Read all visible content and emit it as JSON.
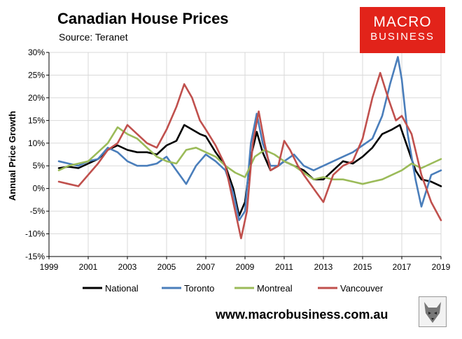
{
  "header": {
    "title": "Canadian House Prices",
    "subtitle": "Source: Teranet"
  },
  "logo": {
    "line1": "MACRO",
    "line2": "BUSINESS",
    "color": "#e2231a"
  },
  "footer": {
    "website": "www.macrobusiness.com.au",
    "badge_icon": "wolf-emblem-icon"
  },
  "chart_data": {
    "type": "line",
    "title": "Canadian House Prices",
    "subtitle": "Source: Teranet",
    "xlabel": "",
    "ylabel": "Annual Price Growth",
    "xlim": [
      1999,
      2019
    ],
    "ylim": [
      -15,
      30
    ],
    "x_ticks": [
      1999,
      2001,
      2003,
      2005,
      2007,
      2009,
      2011,
      2013,
      2015,
      2017,
      2019
    ],
    "x_tick_labels": [
      "1999",
      "2001",
      "2003",
      "2005",
      "2007",
      "2009",
      "2011",
      "2013",
      "2015",
      "2017",
      "2019"
    ],
    "y_ticks": [
      -15,
      -10,
      -5,
      0,
      5,
      10,
      15,
      20,
      25,
      30
    ],
    "y_tick_labels": [
      "-15%",
      "-10%",
      "-5%",
      "0%",
      "5%",
      "10%",
      "15%",
      "20%",
      "25%",
      "30%"
    ],
    "grid": true,
    "legend_position": "bottom",
    "series": [
      {
        "name": "National",
        "color": "#000000",
        "x": [
          1999.5,
          2000,
          2000.5,
          2001,
          2001.5,
          2002,
          2002.5,
          2003,
          2003.5,
          2004,
          2004.5,
          2005,
          2005.5,
          2005.9,
          2006.3,
          2006.7,
          2007,
          2007.5,
          2008,
          2008.4,
          2008.7,
          2009,
          2009.3,
          2009.6,
          2009.9,
          2010.3,
          2010.7,
          2011,
          2011.5,
          2012,
          2012.5,
          2013,
          2013.5,
          2014,
          2014.5,
          2015,
          2015.5,
          2016,
          2016.5,
          2016.9,
          2017.3,
          2017.7,
          2018,
          2018.5,
          2019
        ],
        "values": [
          4.5,
          4.8,
          4.5,
          5.5,
          6.5,
          8.5,
          9.5,
          8.5,
          8.0,
          8.0,
          7.5,
          9.5,
          10.5,
          14.0,
          13.0,
          12.0,
          11.5,
          8.0,
          5.0,
          0.0,
          -6.0,
          -3.0,
          7.0,
          12.5,
          8.0,
          4.0,
          5.0,
          6.0,
          5.0,
          4.0,
          2.0,
          2.0,
          4.0,
          6.0,
          5.5,
          7.0,
          9.0,
          12.0,
          13.0,
          14.0,
          9.0,
          4.0,
          2.0,
          1.5,
          0.5
        ]
      },
      {
        "name": "Toronto",
        "color": "#4a7ebb",
        "x": [
          1999.5,
          2000,
          2000.5,
          2001,
          2001.5,
          2002,
          2002.5,
          2003,
          2003.5,
          2004,
          2004.5,
          2005,
          2005.5,
          2006,
          2006.5,
          2007,
          2007.5,
          2008,
          2008.4,
          2008.7,
          2009,
          2009.3,
          2009.6,
          2009.9,
          2010.3,
          2010.7,
          2011,
          2011.5,
          2012,
          2012.5,
          2013,
          2013.5,
          2014,
          2014.5,
          2015,
          2015.5,
          2016,
          2016.4,
          2016.8,
          2017,
          2017.3,
          2017.7,
          2018,
          2018.5,
          2019
        ],
        "values": [
          6.0,
          5.5,
          5.0,
          6.0,
          6.5,
          9.0,
          8.0,
          6.0,
          5.0,
          5.0,
          5.5,
          7.0,
          4.0,
          1.0,
          5.0,
          7.5,
          6.0,
          4.0,
          -1.0,
          -7.0,
          -5.0,
          10.0,
          16.5,
          10.0,
          5.0,
          5.0,
          6.0,
          7.5,
          5.0,
          4.0,
          5.0,
          6.0,
          7.0,
          8.0,
          9.5,
          11.0,
          16.0,
          23.0,
          29.0,
          24.0,
          12.0,
          2.0,
          -4.0,
          3.0,
          4.0
        ]
      },
      {
        "name": "Montreal",
        "color": "#9bbb59",
        "x": [
          1999.5,
          2000,
          2000.5,
          2001,
          2001.5,
          2002,
          2002.5,
          2003,
          2003.5,
          2004,
          2004.5,
          2005,
          2005.5,
          2006,
          2006.5,
          2007,
          2007.5,
          2008,
          2008.5,
          2009,
          2009.5,
          2010,
          2010.5,
          2011,
          2011.5,
          2012,
          2012.5,
          2013,
          2013.5,
          2014,
          2014.5,
          2015,
          2015.5,
          2016,
          2016.5,
          2017,
          2017.5,
          2018,
          2018.5,
          2019
        ],
        "values": [
          4.0,
          5.0,
          5.5,
          6.0,
          8.0,
          10.0,
          13.5,
          12.0,
          11.0,
          9.0,
          7.0,
          6.0,
          5.5,
          8.5,
          9.0,
          8.0,
          7.0,
          5.0,
          3.5,
          2.5,
          7.0,
          8.5,
          7.5,
          6.0,
          5.0,
          3.5,
          2.0,
          2.5,
          2.0,
          2.0,
          1.5,
          1.0,
          1.5,
          2.0,
          3.0,
          4.0,
          5.5,
          4.5,
          5.5,
          6.5
        ]
      },
      {
        "name": "Vancouver",
        "color": "#c0504d",
        "x": [
          1999.5,
          2000,
          2000.5,
          2001,
          2001.5,
          2002,
          2002.5,
          2003,
          2003.5,
          2004,
          2004.5,
          2005,
          2005.5,
          2005.9,
          2006.3,
          2006.7,
          2007,
          2007.5,
          2008,
          2008.4,
          2008.8,
          2009.1,
          2009.4,
          2009.7,
          2010,
          2010.3,
          2010.7,
          2011,
          2011.3,
          2011.7,
          2012,
          2012.5,
          2013,
          2013.5,
          2014,
          2014.5,
          2015,
          2015.5,
          2015.9,
          2016.3,
          2016.7,
          2017,
          2017.5,
          2018,
          2018.5,
          2019
        ],
        "values": [
          1.5,
          1.0,
          0.5,
          3.0,
          5.5,
          8.5,
          10.0,
          14.0,
          12.0,
          10.0,
          9.0,
          13.0,
          18.0,
          23.0,
          20.0,
          15.0,
          13.0,
          9.5,
          5.0,
          -3.0,
          -11.0,
          -5.0,
          10.0,
          17.0,
          10.0,
          4.0,
          5.0,
          10.5,
          8.5,
          5.0,
          3.0,
          0.0,
          -3.0,
          3.0,
          5.0,
          6.0,
          11.0,
          20.0,
          25.5,
          20.0,
          15.0,
          16.0,
          12.0,
          3.0,
          -3.0,
          -7.0
        ]
      }
    ]
  }
}
